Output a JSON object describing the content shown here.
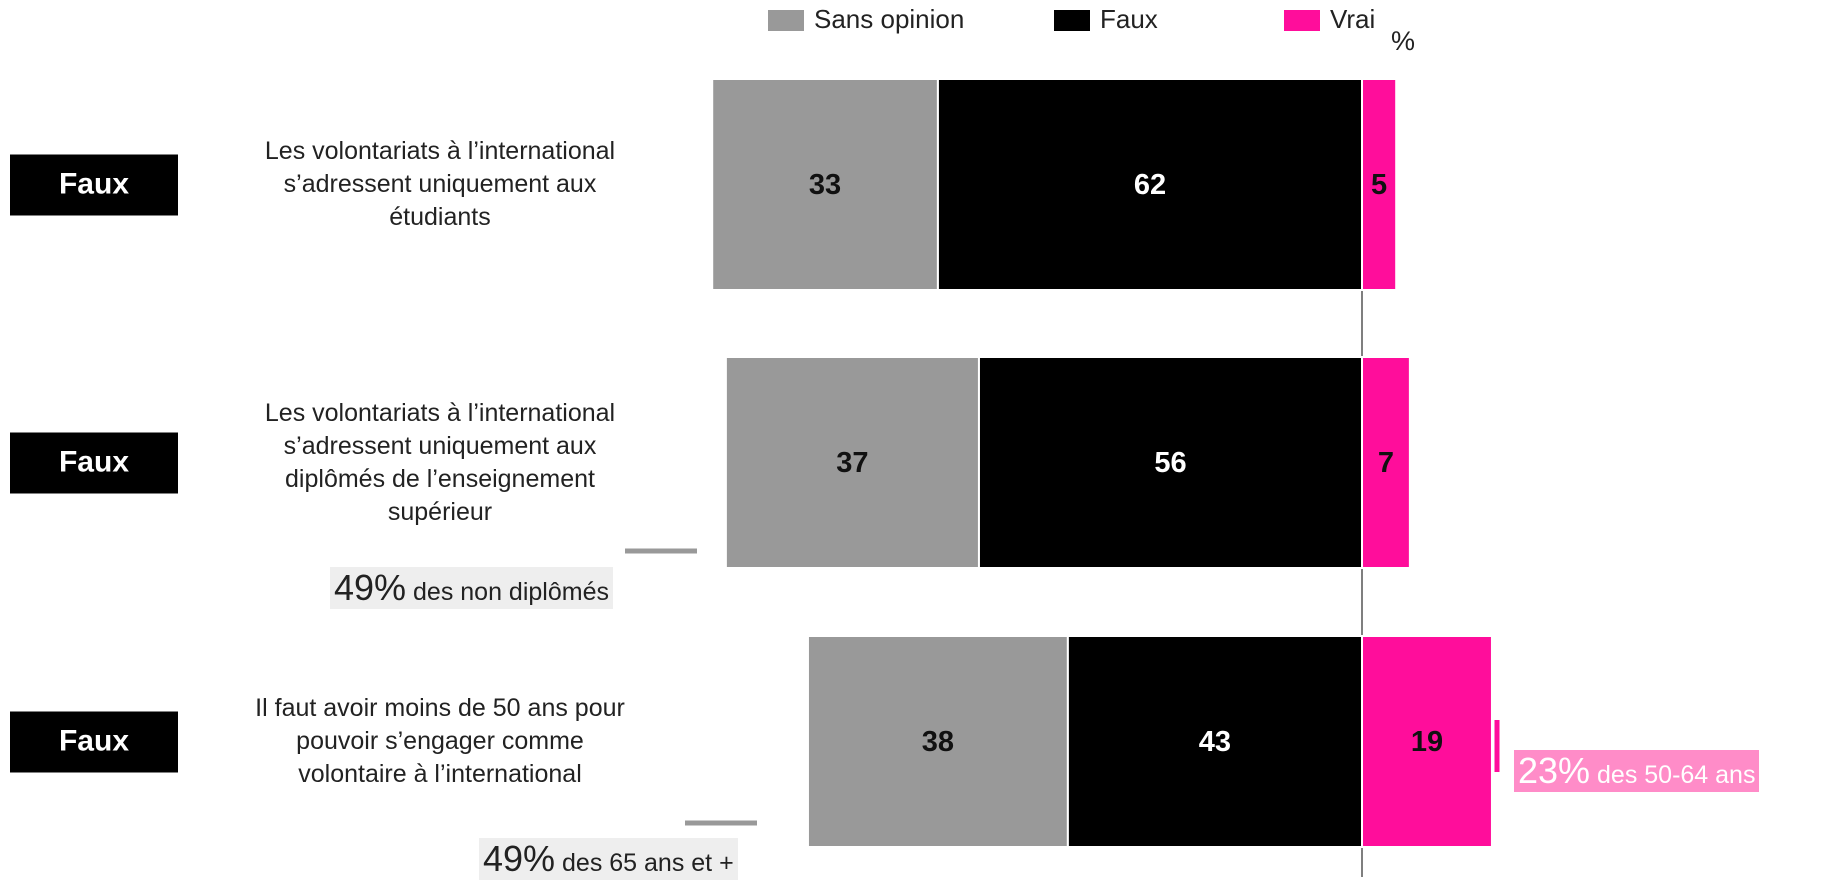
{
  "chart_data": {
    "type": "bar",
    "orientation": "horizontal",
    "stacked": true,
    "unit_label": "%",
    "categories": [
      "Les volontariats à l’international s’adressent uniquement aux étudiants",
      "Les volontariats à l’international s’adressent uniquement aux diplômés de l’enseignement supérieur",
      "Il faut avoir moins de 50 ans pour pouvoir s’engager comme volontaire à l’international"
    ],
    "answers": [
      "Faux",
      "Faux",
      "Faux"
    ],
    "series": [
      {
        "name": "Sans opinion",
        "color": "#999999",
        "label_color": "#111111",
        "values": [
          33,
          37,
          38
        ]
      },
      {
        "name": "Faux",
        "color": "#000000",
        "label_color": "#ffffff",
        "values": [
          62,
          56,
          43
        ]
      },
      {
        "name": "Vrai",
        "color": "#ff0d9b",
        "label_color": "#111111",
        "values": [
          5,
          7,
          19
        ]
      }
    ],
    "annotations": [
      {
        "row": 1,
        "side": "left",
        "figure": "49%",
        "text": "des non diplômés",
        "color": "#999999",
        "background": "#eeeeee",
        "text_color": "#222222"
      },
      {
        "row": 2,
        "side": "left",
        "figure": "49%",
        "text": "des 65 ans et +",
        "color": "#999999",
        "background": "#eeeeee",
        "text_color": "#222222"
      },
      {
        "row": 2,
        "side": "right",
        "figure": "23%",
        "text": "des 50-64 ans",
        "color": "#ff0d9b",
        "background": "#ff8cc8",
        "text_color": "#ffffff"
      }
    ]
  }
}
